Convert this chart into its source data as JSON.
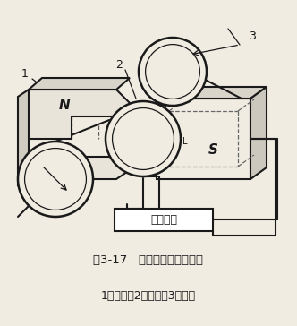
{
  "title": "图3-17   电磁流量计原理简图",
  "subtitle": "1－磁极；2－电极；3－管道",
  "instrument_label": "测量仪表",
  "label_1": "1",
  "label_2": "2",
  "label_3": "3",
  "label_N": "N",
  "label_S": "S",
  "bg_color": "#f0ece2",
  "line_color": "#1a1a1a",
  "title_fontsize": 9.5,
  "subtitle_fontsize": 9
}
